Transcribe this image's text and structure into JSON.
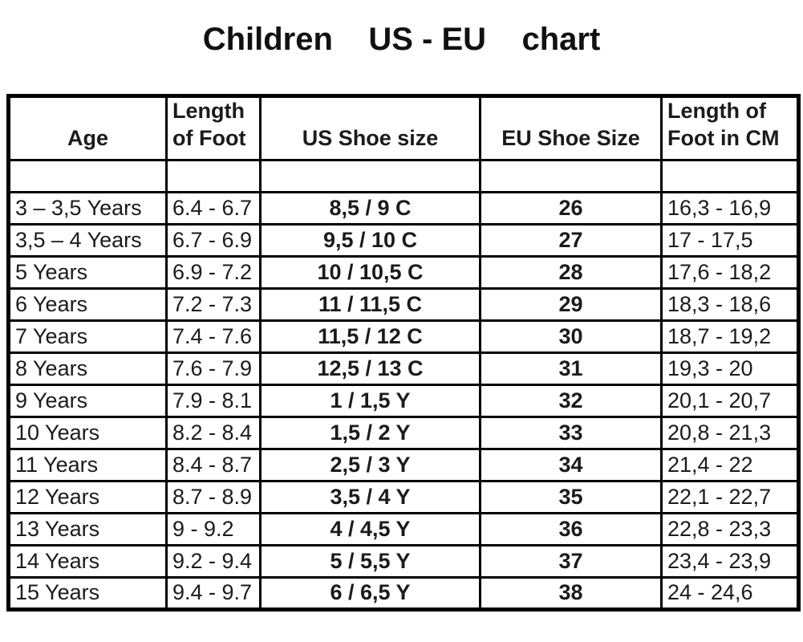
{
  "page": {
    "title": "Children    US - EU    chart"
  },
  "table": {
    "columns": [
      "Age",
      "Length\nof Foot",
      "US Shoe size",
      "EU Shoe Size",
      "Length of\nFoot in CM"
    ],
    "rows": [
      {
        "age": "3 – 3,5 Years",
        "foot": "6.4 - 6.7",
        "us": "8,5 / 9 C",
        "eu": "26",
        "cm": "16,3 - 16,9"
      },
      {
        "age": "3,5 – 4 Years",
        "foot": "6.7 - 6.9",
        "us": "9,5 / 10 C",
        "eu": "27",
        "cm": "17 - 17,5"
      },
      {
        "age": "5 Years",
        "foot": "6.9 - 7.2",
        "us": "10 / 10,5 C",
        "eu": "28",
        "cm": "17,6 - 18,2"
      },
      {
        "age": "6 Years",
        "foot": "7.2 - 7.3",
        "us": "11 / 11,5 C",
        "eu": "29",
        "cm": "18,3 - 18,6"
      },
      {
        "age": "7 Years",
        "foot": "7.4 - 7.6",
        "us": "11,5 / 12 C",
        "eu": "30",
        "cm": "18,7 - 19,2"
      },
      {
        "age": "8 Years",
        "foot": "7.6 - 7.9",
        "us": "12,5 / 13 C",
        "eu": "31",
        "cm": "19,3 - 20"
      },
      {
        "age": "9 Years",
        "foot": "7.9 - 8.1",
        "us": "1 / 1,5 Y",
        "eu": "32",
        "cm": "20,1 - 20,7"
      },
      {
        "age": "10 Years",
        "foot": "8.2 - 8.4",
        "us": "1,5 / 2 Y",
        "eu": "33",
        "cm": "20,8 - 21,3"
      },
      {
        "age": "11 Years",
        "foot": "8.4 - 8.7",
        "us": "2,5 / 3 Y",
        "eu": "34",
        "cm": "21,4 - 22"
      },
      {
        "age": "12 Years",
        "foot": "8.7 - 8.9",
        "us": "3,5 / 4 Y",
        "eu": "35",
        "cm": "22,1 - 22,7"
      },
      {
        "age": "13 Years",
        "foot": "9 - 9.2",
        "us": "4 / 4,5 Y",
        "eu": "36",
        "cm": "22,8 - 23,3"
      },
      {
        "age": "14 Years",
        "foot": "9.2 - 9.4",
        "us": "5 / 5,5 Y",
        "eu": "37",
        "cm": "23,4 - 23,9"
      },
      {
        "age": "15 Years",
        "foot": "9.4 - 9.7",
        "us": "6 / 6,5 Y",
        "eu": "38",
        "cm": "24 - 24,6"
      }
    ]
  }
}
